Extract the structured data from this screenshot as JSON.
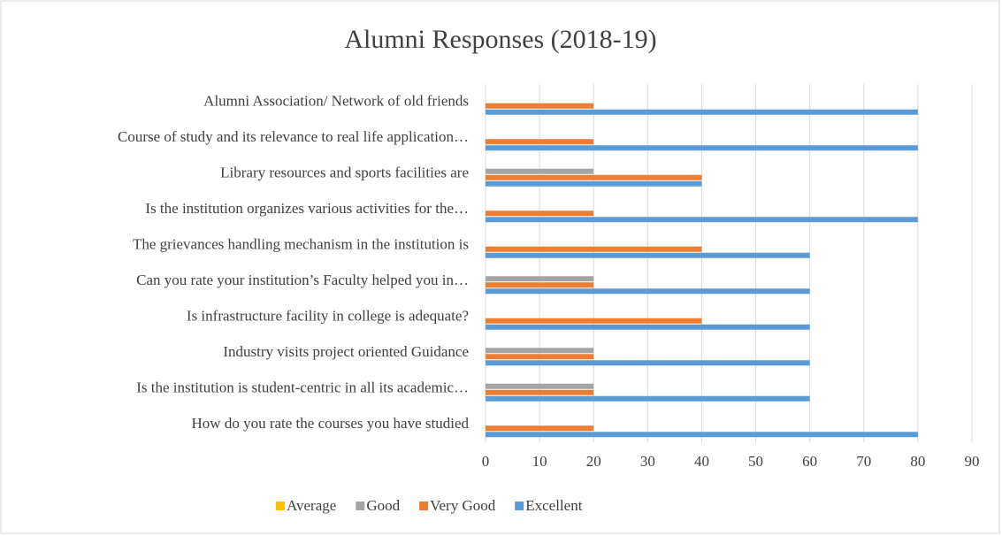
{
  "chart_data": {
    "type": "bar",
    "orientation": "horizontal",
    "title": "Alumni Responses (2018-19)",
    "categories": [
      "Alumni Association/ Network of old friends",
      "Course of study and its relevance to real life application…",
      "Library resources and sports facilities are",
      "Is the institution organizes  various activities for the…",
      "The grievances handling mechanism in the institution is",
      "Can you rate your institution’s Faculty helped you in…",
      "Is infrastructure facility in college is adequate?",
      "Industry  visits project oriented Guidance",
      "Is the institution is student-centric in all its academic…",
      "How do you rate the courses you have studied"
    ],
    "series": [
      {
        "name": "Average",
        "color": "#ffc000",
        "values": [
          0,
          0,
          0,
          0,
          0,
          0,
          0,
          0,
          0,
          0
        ]
      },
      {
        "name": "Good",
        "color": "#a5a5a5",
        "values": [
          0,
          0,
          20,
          0,
          0,
          20,
          0,
          20,
          20,
          0
        ]
      },
      {
        "name": "Very Good",
        "color": "#ed7d31",
        "values": [
          20,
          20,
          40,
          20,
          40,
          20,
          40,
          20,
          20,
          20
        ]
      },
      {
        "name": "Excellent",
        "color": "#5b9bd5",
        "values": [
          80,
          80,
          40,
          80,
          60,
          60,
          60,
          60,
          60,
          80
        ]
      }
    ],
    "xlim": [
      0,
      90
    ],
    "xticks": [
      0,
      10,
      20,
      30,
      40,
      50,
      60,
      70,
      80,
      90
    ],
    "grid": true,
    "legend": "bottom"
  }
}
